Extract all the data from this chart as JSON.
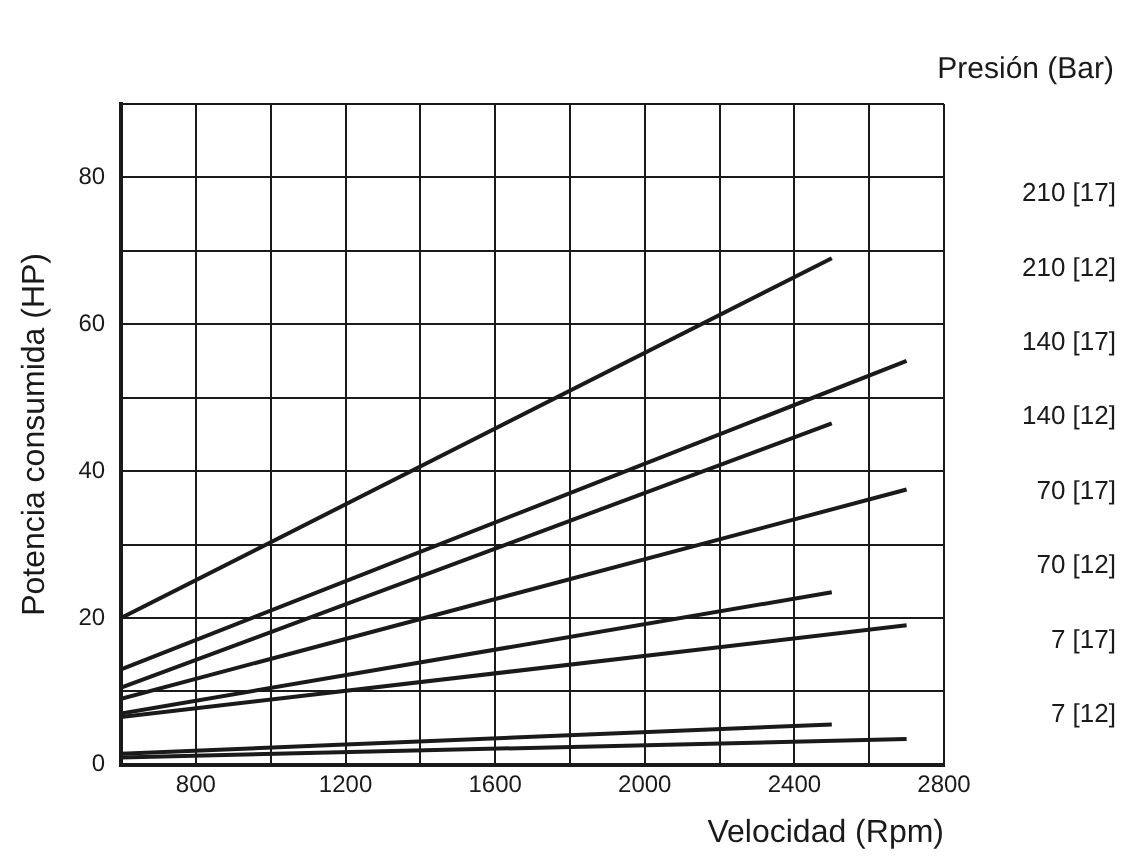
{
  "chart_data": {
    "type": "line",
    "title": "Presión (Bar)",
    "xlabel": "Velocidad (Rpm)",
    "ylabel": "Potencia consumida (HP)",
    "xlim": [
      600,
      2800
    ],
    "ylim": [
      0,
      90
    ],
    "xticks": [
      {
        "value": 600,
        "label": null
      },
      800,
      {
        "value": 1000,
        "label": null
      },
      1200,
      {
        "value": 1400,
        "label": null
      },
      1600,
      {
        "value": 1800,
        "label": null
      },
      2000,
      {
        "value": 2200,
        "label": null
      },
      2400,
      {
        "value": 2600,
        "label": null
      },
      2800
    ],
    "yticks": [
      0,
      {
        "value": 10,
        "label": null
      },
      20,
      {
        "value": 30,
        "label": null
      },
      40,
      {
        "value": 50,
        "label": null
      },
      60,
      {
        "value": 70,
        "label": null
      },
      80,
      {
        "value": 90,
        "label": null
      }
    ],
    "grid": true,
    "marker": "none",
    "line_style": "solid",
    "series": [
      {
        "name": "210 [17]",
        "color": "#1a1a1a",
        "x": [
          600,
          2500
        ],
        "values": [
          20,
          69
        ]
      },
      {
        "name": "210 [12]",
        "color": "#1a1a1a",
        "x": [
          600,
          2700
        ],
        "values": [
          13,
          55
        ]
      },
      {
        "name": "140 [17]",
        "color": "#1a1a1a",
        "x": [
          600,
          2500
        ],
        "values": [
          10.5,
          46.5
        ]
      },
      {
        "name": "140 [12]",
        "color": "#1a1a1a",
        "x": [
          600,
          2700
        ],
        "values": [
          9,
          37.5
        ]
      },
      {
        "name": "70 [17]",
        "color": "#1a1a1a",
        "x": [
          600,
          2500
        ],
        "values": [
          7,
          23.5
        ]
      },
      {
        "name": "70 [12]",
        "color": "#1a1a1a",
        "x": [
          600,
          2700
        ],
        "values": [
          6.5,
          19
        ]
      },
      {
        "name": "7 [17]",
        "color": "#1a1a1a",
        "x": [
          600,
          2500
        ],
        "values": [
          1.5,
          5.5
        ]
      },
      {
        "name": "7 [12]",
        "color": "#1a1a1a",
        "x": [
          600,
          2700
        ],
        "values": [
          1,
          3.5
        ]
      }
    ]
  }
}
